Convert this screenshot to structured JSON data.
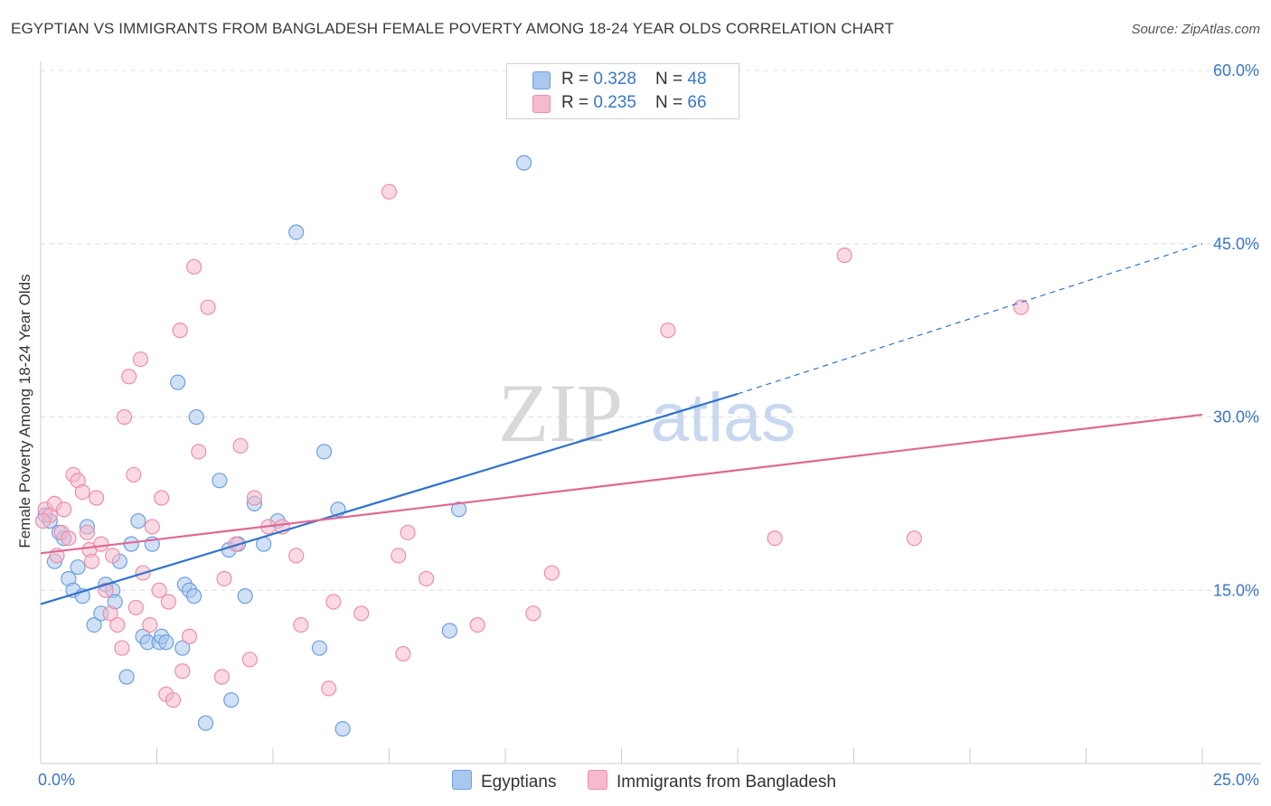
{
  "title": "EGYPTIAN VS IMMIGRANTS FROM BANGLADESH FEMALE POVERTY AMONG 18-24 YEAR OLDS CORRELATION CHART",
  "source": "Source: ZipAtlas.com",
  "watermark": {
    "zip": "ZIP",
    "atlas": "atlas"
  },
  "legend": {
    "rows": [
      {
        "r_label": "R = ",
        "r_value": "0.328",
        "n_label": "N = ",
        "n_value": "48"
      },
      {
        "r_label": "R = ",
        "r_value": "0.235",
        "n_label": "N = ",
        "n_value": "66"
      }
    ]
  },
  "colors": {
    "blue_fill": "#a9c8ef",
    "blue_stroke": "#6f9fde",
    "blue_line": "#2f73cc",
    "pink_fill": "#f7b9cc",
    "pink_stroke": "#ea8fae",
    "pink_line": "#e06892",
    "tick_label": "#3a76c8",
    "grid": "#dddddd"
  },
  "chart_data": {
    "type": "scatter",
    "title": "EGYPTIAN VS IMMIGRANTS FROM BANGLADESH FEMALE POVERTY AMONG 18-24 YEAR OLDS CORRELATION CHART",
    "xlabel": "",
    "ylabel": "Female Poverty Among 18-24 Year Olds",
    "xlim": [
      0,
      25
    ],
    "ylim": [
      0,
      60
    ],
    "x_tick_labels": [
      "0.0%",
      "25.0%"
    ],
    "y_ticks": [
      15,
      30,
      45,
      60
    ],
    "y_tick_labels": [
      "15.0%",
      "30.0%",
      "45.0%",
      "60.0%"
    ],
    "grid": true,
    "legend_position": "top-center",
    "series": [
      {
        "name": "Egyptians",
        "color": "#a9c8ef",
        "points": [
          [
            0.1,
            21.5
          ],
          [
            0.2,
            21.0
          ],
          [
            0.3,
            17.5
          ],
          [
            0.4,
            20.0
          ],
          [
            0.5,
            19.5
          ],
          [
            0.6,
            16.0
          ],
          [
            0.7,
            15.0
          ],
          [
            0.8,
            17.0
          ],
          [
            0.9,
            14.5
          ],
          [
            1.0,
            20.5
          ],
          [
            1.15,
            12.0
          ],
          [
            1.3,
            13.0
          ],
          [
            1.4,
            15.5
          ],
          [
            1.55,
            15.0
          ],
          [
            1.6,
            14.0
          ],
          [
            1.7,
            17.5
          ],
          [
            1.85,
            7.5
          ],
          [
            1.95,
            19.0
          ],
          [
            2.1,
            21.0
          ],
          [
            2.2,
            11.0
          ],
          [
            2.3,
            10.5
          ],
          [
            2.4,
            19.0
          ],
          [
            2.55,
            10.5
          ],
          [
            2.6,
            11.0
          ],
          [
            2.7,
            10.5
          ],
          [
            2.95,
            33.0
          ],
          [
            3.05,
            10.0
          ],
          [
            3.1,
            15.5
          ],
          [
            3.2,
            15.0
          ],
          [
            3.3,
            14.5
          ],
          [
            3.35,
            30.0
          ],
          [
            3.55,
            3.5
          ],
          [
            3.85,
            24.5
          ],
          [
            4.05,
            18.5
          ],
          [
            4.1,
            5.5
          ],
          [
            4.25,
            19.0
          ],
          [
            4.4,
            14.5
          ],
          [
            4.6,
            22.5
          ],
          [
            4.8,
            19.0
          ],
          [
            5.1,
            21.0
          ],
          [
            5.5,
            46.0
          ],
          [
            6.0,
            10.0
          ],
          [
            6.1,
            27.0
          ],
          [
            6.4,
            22.0
          ],
          [
            6.5,
            3.0
          ],
          [
            8.8,
            11.5
          ],
          [
            9.0,
            22.0
          ],
          [
            10.4,
            52.0
          ]
        ],
        "trend": {
          "x": [
            0,
            15
          ],
          "y": [
            13.8,
            32.0
          ],
          "dashed_extension_to": [
            25,
            45.0
          ]
        }
      },
      {
        "name": "Immigrants from Bangladesh",
        "color": "#f7b9cc",
        "points": [
          [
            0.1,
            22.0
          ],
          [
            0.2,
            21.5
          ],
          [
            0.3,
            22.5
          ],
          [
            0.35,
            18.0
          ],
          [
            0.45,
            20.0
          ],
          [
            0.5,
            22.0
          ],
          [
            0.6,
            19.5
          ],
          [
            0.7,
            25.0
          ],
          [
            0.8,
            24.5
          ],
          [
            0.9,
            23.5
          ],
          [
            1.0,
            20.0
          ],
          [
            1.05,
            18.5
          ],
          [
            1.1,
            17.5
          ],
          [
            1.2,
            23.0
          ],
          [
            1.3,
            19.0
          ],
          [
            1.4,
            15.0
          ],
          [
            1.5,
            13.0
          ],
          [
            1.55,
            18.0
          ],
          [
            1.65,
            12.0
          ],
          [
            1.75,
            10.0
          ],
          [
            1.8,
            30.0
          ],
          [
            1.9,
            33.5
          ],
          [
            2.0,
            25.0
          ],
          [
            2.05,
            13.5
          ],
          [
            2.15,
            35.0
          ],
          [
            2.2,
            16.5
          ],
          [
            2.35,
            12.0
          ],
          [
            2.4,
            20.5
          ],
          [
            2.55,
            15.0
          ],
          [
            2.6,
            23.0
          ],
          [
            2.7,
            6.0
          ],
          [
            2.75,
            14.0
          ],
          [
            2.85,
            5.5
          ],
          [
            3.0,
            37.5
          ],
          [
            3.05,
            8.0
          ],
          [
            3.2,
            11.0
          ],
          [
            3.3,
            43.0
          ],
          [
            3.4,
            27.0
          ],
          [
            3.6,
            39.5
          ],
          [
            3.9,
            7.5
          ],
          [
            3.95,
            16.0
          ],
          [
            4.2,
            19.0
          ],
          [
            4.3,
            27.5
          ],
          [
            4.5,
            9.0
          ],
          [
            4.6,
            23.0
          ],
          [
            4.9,
            20.5
          ],
          [
            5.2,
            20.5
          ],
          [
            5.5,
            18.0
          ],
          [
            5.6,
            12.0
          ],
          [
            6.2,
            6.5
          ],
          [
            6.3,
            14.0
          ],
          [
            6.9,
            13.0
          ],
          [
            7.5,
            49.5
          ],
          [
            7.7,
            18.0
          ],
          [
            7.8,
            9.5
          ],
          [
            7.9,
            20.0
          ],
          [
            8.3,
            16.0
          ],
          [
            9.4,
            12.0
          ],
          [
            10.6,
            13.0
          ],
          [
            11.0,
            16.5
          ],
          [
            13.5,
            37.5
          ],
          [
            15.8,
            19.5
          ],
          [
            17.3,
            44.0
          ],
          [
            18.8,
            19.5
          ],
          [
            21.1,
            39.5
          ],
          [
            0.05,
            21.0
          ]
        ],
        "trend": {
          "x": [
            0,
            25
          ],
          "y": [
            18.2,
            30.2
          ]
        }
      }
    ]
  },
  "bottom_legend": [
    {
      "label": "Egyptians"
    },
    {
      "label": "Immigrants from Bangladesh"
    }
  ]
}
